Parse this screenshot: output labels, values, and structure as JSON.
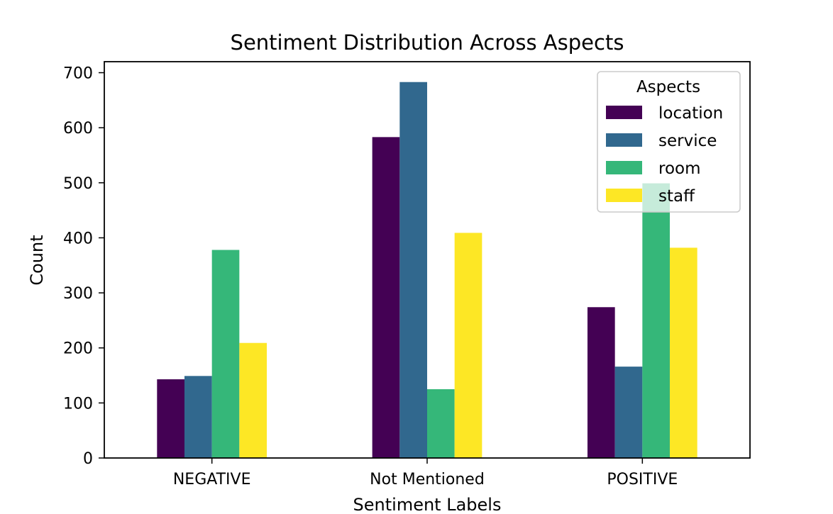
{
  "chart_data": {
    "type": "bar",
    "title": "Sentiment Distribution Across Aspects",
    "xlabel": "Sentiment Labels",
    "ylabel": "Count",
    "categories": [
      "NEGATIVE",
      "Not Mentioned",
      "POSITIVE"
    ],
    "series": [
      {
        "name": "location",
        "color": "#440154",
        "values": [
          143,
          583,
          274
        ]
      },
      {
        "name": "service",
        "color": "#31688e",
        "values": [
          149,
          683,
          166
        ]
      },
      {
        "name": "room",
        "color": "#35b779",
        "values": [
          378,
          125,
          499
        ]
      },
      {
        "name": "staff",
        "color": "#fde725",
        "values": [
          209,
          409,
          382
        ]
      }
    ],
    "ylim": [
      0,
      720
    ],
    "yticks": [
      0,
      100,
      200,
      300,
      400,
      500,
      600,
      700
    ],
    "legend": {
      "title": "Aspects",
      "placement": "upper right"
    },
    "grid": false
  }
}
